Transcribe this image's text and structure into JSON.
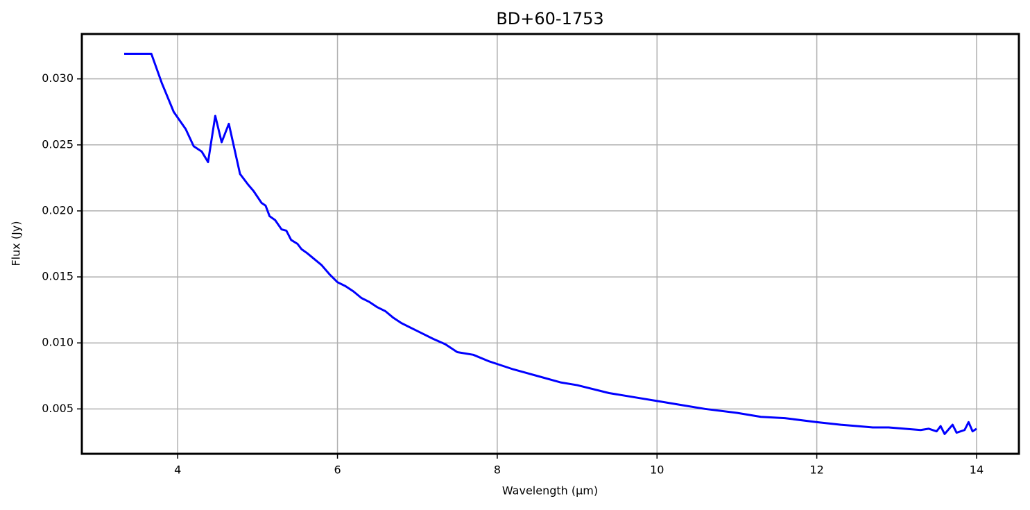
{
  "chart_data": {
    "type": "line",
    "title": "BD+60-1753",
    "x_label": "Wavelength (µm)",
    "y_label": "Flux (Jy)",
    "xlim": [
      2.8,
      14.53
    ],
    "ylim": [
      0.0016,
      0.0334
    ],
    "xticks": [
      4,
      6,
      8,
      10,
      12,
      14
    ],
    "yticks": [
      0.005,
      {
        "value": 0.01,
        "label": "0.010"
      },
      0.015,
      {
        "value": 0.02,
        "label": "0.020"
      },
      0.025,
      {
        "value": 0.03,
        "label": "0.030"
      }
    ],
    "grid": true,
    "series": [
      {
        "name": "BD+60-1753",
        "color": "#0000ff",
        "x": [
          3.33,
          3.67,
          3.8,
          3.95,
          4.1,
          4.2,
          4.3,
          4.38,
          4.47,
          4.55,
          4.64,
          4.78,
          4.88,
          4.95,
          5.05,
          5.1,
          5.15,
          5.22,
          5.3,
          5.36,
          5.42,
          5.5,
          5.55,
          5.62,
          5.7,
          5.8,
          5.9,
          6.0,
          6.1,
          6.2,
          6.3,
          6.4,
          6.5,
          6.6,
          6.7,
          6.8,
          6.9,
          7.0,
          7.2,
          7.35,
          7.5,
          7.7,
          7.9,
          8.0,
          8.2,
          8.5,
          8.8,
          9.0,
          9.4,
          9.7,
          10.0,
          10.3,
          10.6,
          11.0,
          11.3,
          11.6,
          12.0,
          12.3,
          12.5,
          12.7,
          12.9,
          13.1,
          13.3,
          13.4,
          13.5,
          13.55,
          13.6,
          13.7,
          13.75,
          13.85,
          13.9,
          13.95,
          14.0
        ],
        "values": [
          0.0319,
          0.0319,
          0.0297,
          0.0275,
          0.0262,
          0.0249,
          0.0245,
          0.0237,
          0.0272,
          0.0252,
          0.0266,
          0.0228,
          0.022,
          0.0215,
          0.0206,
          0.0204,
          0.0196,
          0.0193,
          0.0186,
          0.0185,
          0.0178,
          0.0175,
          0.0171,
          0.0168,
          0.0164,
          0.0159,
          0.0152,
          0.0146,
          0.0143,
          0.0139,
          0.0134,
          0.0131,
          0.0127,
          0.0124,
          0.0119,
          0.0115,
          0.0112,
          0.0109,
          0.0103,
          0.0099,
          0.0093,
          0.0091,
          0.0086,
          0.0084,
          0.008,
          0.0075,
          0.007,
          0.0068,
          0.0062,
          0.0059,
          0.0056,
          0.0053,
          0.005,
          0.0047,
          0.0044,
          0.0043,
          0.004,
          0.0038,
          0.0037,
          0.0036,
          0.0036,
          0.0035,
          0.0034,
          0.0035,
          0.0033,
          0.0037,
          0.0031,
          0.0038,
          0.0032,
          0.0034,
          0.004,
          0.0033,
          0.0035
        ]
      }
    ]
  }
}
